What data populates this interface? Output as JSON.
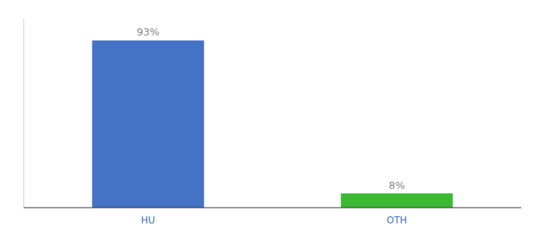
{
  "chart_data": {
    "type": "bar",
    "categories": [
      "HU",
      "OTH"
    ],
    "values": [
      93,
      8
    ],
    "value_labels": [
      "93%",
      "8%"
    ],
    "colors": [
      "#4472c4",
      "#3cb832"
    ],
    "ylim": [
      0,
      105
    ],
    "tick_labels": "x",
    "data_labels": true
  }
}
